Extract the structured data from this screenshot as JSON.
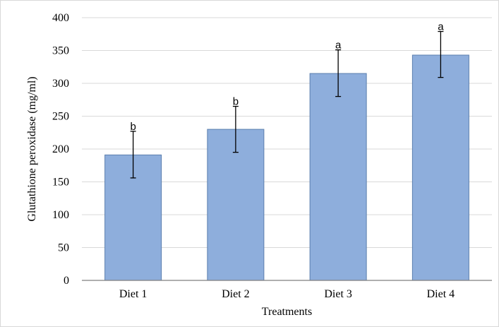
{
  "chart_data": {
    "type": "bar",
    "categories": [
      "Diet 1",
      "Diet 2",
      "Diet 3",
      "Diet 4"
    ],
    "values": [
      191,
      230,
      315,
      343
    ],
    "error_upper": [
      227,
      265,
      351,
      379
    ],
    "error_lower": [
      156,
      195,
      280,
      309
    ],
    "significance_letters": [
      "b",
      "b",
      "a",
      "a"
    ],
    "xlabel": "Treatments",
    "ylabel": "Glutathione peroxidase (mg/ml)",
    "ylim": [
      0,
      400
    ],
    "yticks": [
      "0",
      "50",
      "100",
      "150",
      "200",
      "250",
      "300",
      "350",
      "400"
    ],
    "grid": true,
    "bar_color": "#8eaedc",
    "legend": "none"
  }
}
